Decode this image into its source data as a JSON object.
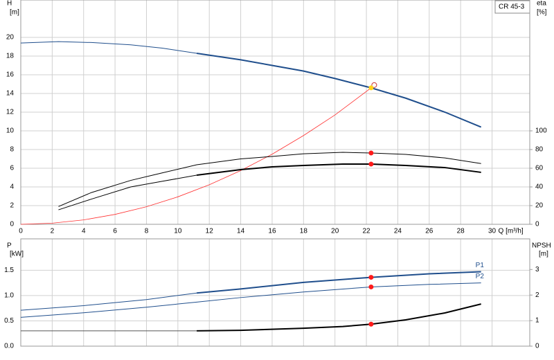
{
  "chart_data": [
    {
      "type": "line",
      "title": "CR 45-3",
      "ylabel": "H",
      "yunit": "[m]",
      "y2label": "eta",
      "y2unit": "[%]",
      "xlabel": "Q [m³/h]",
      "xlim": [
        0,
        32.4
      ],
      "xticks": [
        0,
        2,
        4,
        6,
        8,
        10,
        12,
        14,
        16,
        18,
        20,
        22,
        24,
        26,
        28,
        30
      ],
      "xtick_labels": true,
      "ylim": [
        0,
        24
      ],
      "yticks": [
        0,
        2,
        4,
        6,
        8,
        10,
        12,
        14,
        16,
        18,
        20
      ],
      "y2lim": [
        0,
        240
      ],
      "y2ticks": [
        0,
        20,
        40,
        60,
        80,
        100
      ],
      "grid": true,
      "series": [
        {
          "color": "#1f4e8c",
          "width": 1,
          "x": [
            0,
            2.4,
            4.5,
            7,
            9,
            11.2
          ],
          "values": [
            19.4,
            19.55,
            19.45,
            19.2,
            18.85,
            18.3
          ]
        },
        {
          "color": "#1f4e8c",
          "width": 2,
          "x": [
            11.2,
            14,
            16,
            18,
            20,
            22.3,
            24.5,
            27,
            29.3
          ],
          "values": [
            18.3,
            17.6,
            17.0,
            16.4,
            15.6,
            14.6,
            13.5,
            12.0,
            10.4
          ]
        },
        {
          "color": "#ff3030",
          "width": 0.8,
          "x": [
            0,
            2,
            4,
            6,
            8,
            10,
            12,
            14,
            16,
            18,
            20,
            22.3
          ],
          "values": [
            0,
            0.12,
            0.47,
            1.06,
            1.88,
            2.94,
            4.23,
            5.75,
            7.5,
            9.5,
            11.7,
            14.6
          ]
        },
        {
          "color": "#000000",
          "width": 1,
          "axis": "y2",
          "x": [
            2.4,
            4.5,
            7,
            9,
            11.2,
            14,
            16,
            18,
            20.5,
            22.3,
            24.5,
            27,
            29.3
          ],
          "values": [
            19,
            34,
            47,
            55,
            63.7,
            70,
            72.6,
            75.5,
            77,
            76.3,
            74.8,
            71,
            65
          ]
        },
        {
          "color": "#000000",
          "width": 1,
          "axis": "y2",
          "x": [
            2.4,
            4.5,
            7,
            9,
            11.2
          ],
          "values": [
            15.5,
            27,
            40,
            46,
            52.6
          ]
        },
        {
          "color": "#000000",
          "width": 2,
          "axis": "y2",
          "x": [
            11.2,
            14,
            16,
            18,
            20.5,
            22.3,
            24.5,
            27,
            29.3
          ],
          "values": [
            52.6,
            58.5,
            61.5,
            63,
            64.4,
            64.4,
            63,
            60.7,
            55.6
          ]
        }
      ],
      "points": [
        {
          "x": 22.3,
          "y": 76.3,
          "axis": "y2",
          "color": "#ff1a1a"
        },
        {
          "x": 22.3,
          "y": 64.4,
          "axis": "y2",
          "color": "#ff1a1a"
        },
        {
          "x": 22.5,
          "y": 14.9,
          "color": "#ffffff"
        },
        {
          "x": 22.3,
          "y": 14.6,
          "color": "#ffd21a"
        }
      ]
    },
    {
      "type": "line",
      "ylabel": "P",
      "yunit": "[kW]",
      "y2label": "NPSH",
      "y2unit": "[m]",
      "xlim": [
        0,
        32.4
      ],
      "xticks": [
        0,
        2,
        4,
        6,
        8,
        10,
        12,
        14,
        16,
        18,
        20,
        22,
        24,
        26,
        28,
        30
      ],
      "xtick_labels": false,
      "ylim": [
        0,
        2.12
      ],
      "yticks": [
        {
          "value": 0,
          "label": "0.0"
        },
        0.5,
        {
          "value": 1,
          "label": "1.0"
        },
        1.5
      ],
      "y2lim": [
        0,
        4.2
      ],
      "y2ticks": [
        0,
        1,
        2,
        3
      ],
      "grid": true,
      "series": [
        {
          "color": "#1f4e8c",
          "width": 1,
          "x": [
            0,
            4,
            8,
            11.2
          ],
          "values": [
            0.71,
            0.8,
            0.92,
            1.05
          ]
        },
        {
          "label": "P1",
          "color": "#1f4e8c",
          "width": 2,
          "x": [
            11.2,
            14,
            18,
            22.3,
            26,
            29.3
          ],
          "values": [
            1.05,
            1.13,
            1.26,
            1.36,
            1.43,
            1.47
          ]
        },
        {
          "label": "P2",
          "color": "#1f4e8c",
          "width": 1,
          "x": [
            0,
            4,
            8,
            11.2,
            14,
            18,
            22.3,
            26,
            29.3
          ],
          "values": [
            0.57,
            0.66,
            0.77,
            0.87,
            0.96,
            1.07,
            1.17,
            1.22,
            1.25
          ]
        },
        {
          "color": "#555555",
          "width": 1,
          "axis": "y2",
          "x": [
            0,
            11.2
          ],
          "values": [
            0.6,
            0.6
          ]
        },
        {
          "color": "#000000",
          "width": 2,
          "axis": "y2",
          "x": [
            11.2,
            14,
            18,
            20.5,
            22.3,
            24.5,
            27,
            29.3
          ],
          "values": [
            0.6,
            0.62,
            0.7,
            0.77,
            0.86,
            1.03,
            1.3,
            1.65
          ]
        }
      ],
      "points": [
        {
          "x": 22.3,
          "y": 1.36,
          "color": "#ff1a1a"
        },
        {
          "x": 22.3,
          "y": 1.17,
          "color": "#ff1a1a"
        },
        {
          "x": 22.3,
          "y": 0.86,
          "axis": "y2",
          "color": "#ff1a1a"
        }
      ]
    }
  ]
}
